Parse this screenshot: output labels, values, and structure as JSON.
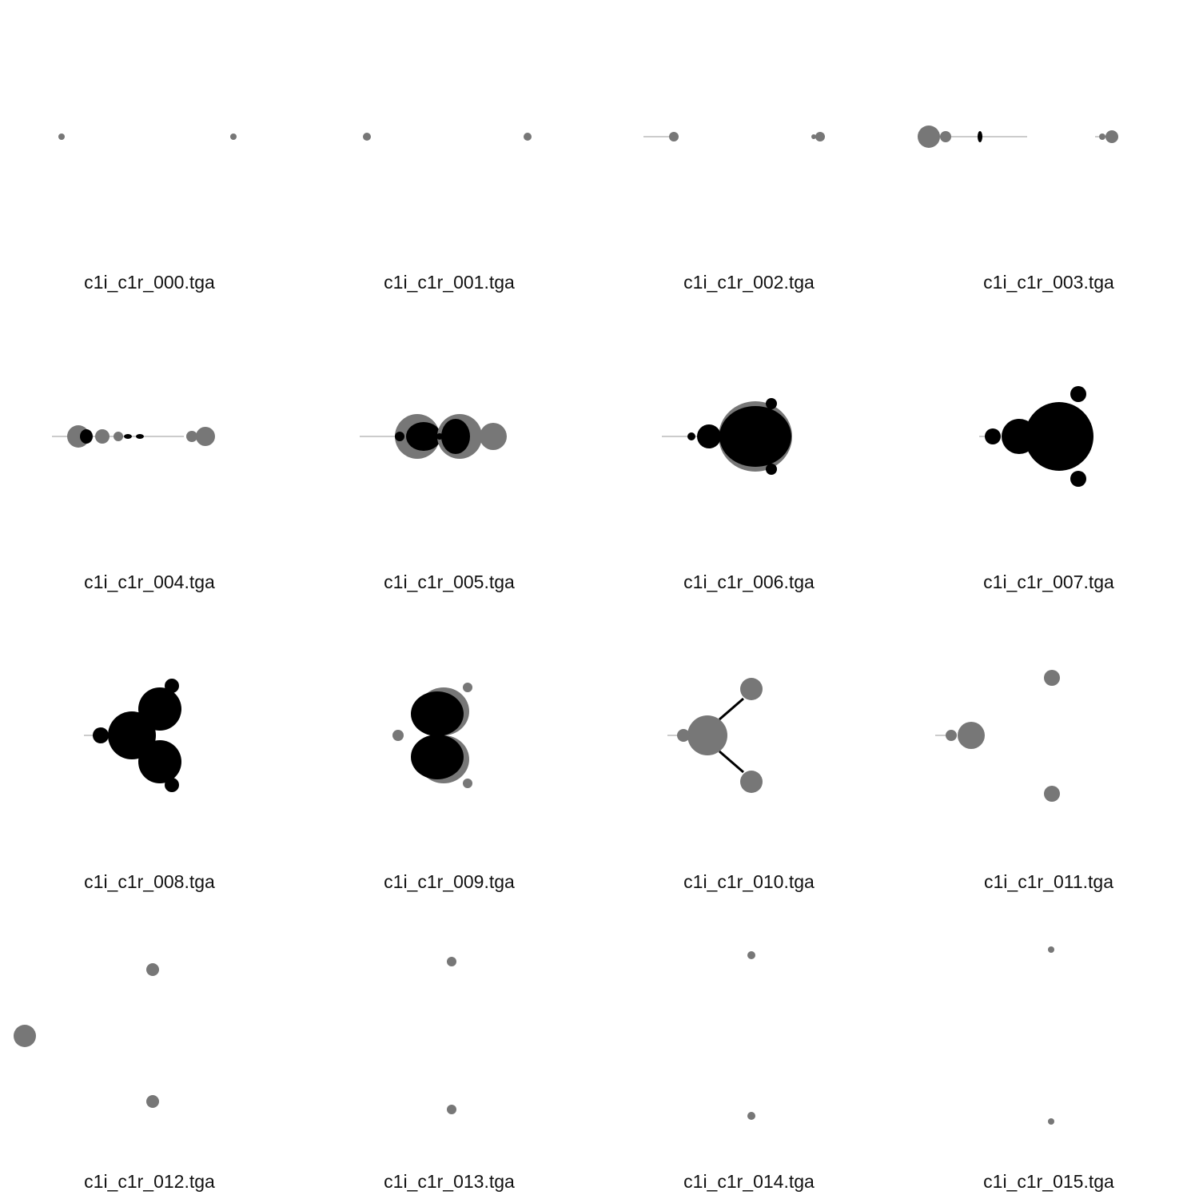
{
  "images": [
    {
      "label": "c1i_c1r_000.tga"
    },
    {
      "label": "c1i_c1r_001.tga"
    },
    {
      "label": "c1i_c1r_002.tga"
    },
    {
      "label": "c1i_c1r_003.tga"
    },
    {
      "label": "c1i_c1r_004.tga"
    },
    {
      "label": "c1i_c1r_005.tga"
    },
    {
      "label": "c1i_c1r_006.tga"
    },
    {
      "label": "c1i_c1r_007.tga"
    },
    {
      "label": "c1i_c1r_008.tga"
    },
    {
      "label": "c1i_c1r_009.tga"
    },
    {
      "label": "c1i_c1r_010.tga"
    },
    {
      "label": "c1i_c1r_011.tga"
    },
    {
      "label": "c1i_c1r_012.tga"
    },
    {
      "label": "c1i_c1r_013.tga"
    },
    {
      "label": "c1i_c1r_014.tga"
    },
    {
      "label": "c1i_c1r_015.tga"
    }
  ]
}
